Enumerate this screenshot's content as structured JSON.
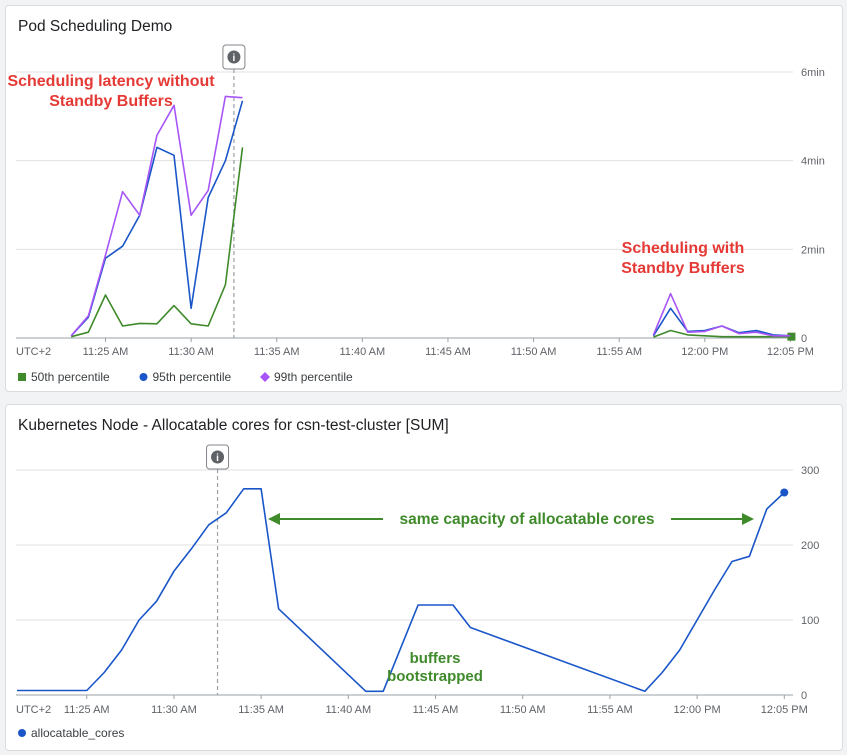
{
  "chart_data": [
    {
      "type": "line",
      "title": "Pod Scheduling Demo",
      "x_ticks": [
        "11:25 AM",
        "11:30 AM",
        "11:35 AM",
        "11:40 AM",
        "11:45 AM",
        "11:50 AM",
        "11:55 AM",
        "12:00 PM",
        "12:05 PM"
      ],
      "timezone_label": "UTC+2",
      "y_ticks": [
        "0",
        "2min",
        "4min",
        "6min"
      ],
      "ylim_min": [
        0,
        6
      ],
      "series": [
        {
          "name": "50th percentile",
          "color": "#3f8a2b",
          "marker": "square",
          "x": [
            "11:23:00",
            "11:24:00",
            "11:25:00",
            "11:26:00",
            "11:27:00",
            "11:28:00",
            "11:29:00",
            "11:30:00",
            "11:31:00",
            "11:32:00",
            "11:33:00",
            "11:57:00",
            "11:58:00",
            "11:59:00",
            "12:00:00",
            "12:01:00",
            "12:02:00",
            "12:03:00",
            "12:04:00",
            "12:05:00"
          ],
          "y": [
            0.03,
            0.13,
            0.97,
            0.27,
            0.33,
            0.32,
            0.73,
            0.32,
            0.27,
            1.2,
            4.3,
            0.02,
            0.17,
            0.07,
            0.05,
            0.03,
            0.03,
            0.03,
            0.03,
            0.03
          ]
        },
        {
          "name": "95th percentile",
          "color": "#1a56c8",
          "marker": "circle",
          "x": [
            "11:23:00",
            "11:24:00",
            "11:25:00",
            "11:26:00",
            "11:27:00",
            "11:28:00",
            "11:29:00",
            "11:30:00",
            "11:31:00",
            "11:32:00",
            "11:33:00",
            "11:57:00",
            "11:58:00",
            "11:59:00",
            "12:00:00",
            "12:01:00",
            "12:02:00",
            "12:03:00",
            "12:04:00",
            "12:05:00"
          ],
          "y": [
            0.05,
            0.47,
            1.8,
            2.07,
            2.77,
            4.3,
            4.12,
            0.67,
            3.17,
            4.0,
            5.35,
            0.05,
            0.67,
            0.15,
            0.17,
            0.27,
            0.12,
            0.17,
            0.07,
            0.05
          ]
        },
        {
          "name": "99th percentile",
          "color": "#a855f7",
          "marker": "diamond",
          "x": [
            "11:23:00",
            "11:24:00",
            "11:25:00",
            "11:26:00",
            "11:27:00",
            "11:28:00",
            "11:29:00",
            "11:30:00",
            "11:31:00",
            "11:32:00",
            "11:33:00",
            "11:57:00",
            "11:58:00",
            "11:59:00",
            "12:00:00",
            "12:01:00",
            "12:02:00",
            "12:03:00",
            "12:04:00",
            "12:05:00"
          ],
          "y": [
            0.05,
            0.5,
            1.87,
            3.3,
            2.77,
            4.57,
            5.25,
            2.77,
            3.33,
            5.45,
            5.42,
            0.07,
            1.0,
            0.13,
            0.15,
            0.27,
            0.1,
            0.13,
            0.05,
            0.05
          ]
        }
      ],
      "annotations": [
        {
          "text_lines": [
            "Scheduling latency without",
            "Standby Buffers"
          ],
          "color": "#e53935"
        },
        {
          "text_lines": [
            "Scheduling with",
            "Standby Buffers"
          ],
          "color": "#e53935"
        }
      ],
      "event_marker": {
        "x": "11:32:30",
        "icon": "info-icon"
      },
      "grid": true,
      "legend": "bottom-left"
    },
    {
      "type": "line",
      "title": "Kubernetes Node - Allocatable cores for csn-test-cluster [SUM]",
      "x_ticks": [
        "11:25 AM",
        "11:30 AM",
        "11:35 AM",
        "11:40 AM",
        "11:45 AM",
        "11:50 AM",
        "11:55 AM",
        "12:00 PM",
        "12:05 PM"
      ],
      "timezone_label": "UTC+2",
      "y_ticks": [
        "0",
        "100",
        "200",
        "300"
      ],
      "ylim": [
        0,
        300
      ],
      "series": [
        {
          "name": "allocatable_cores",
          "color": "#1a56c8",
          "marker": "circle",
          "x": [
            "11:21:00",
            "11:25:00",
            "11:26:00",
            "11:27:00",
            "11:28:00",
            "11:29:00",
            "11:30:00",
            "11:31:00",
            "11:32:00",
            "11:33:00",
            "11:34:00",
            "11:35:00",
            "11:36:00",
            "11:41:00",
            "11:42:00",
            "11:44:00",
            "11:45:00",
            "11:46:00",
            "11:47:00",
            "11:57:00",
            "11:58:00",
            "11:59:00",
            "12:00:00",
            "12:01:00",
            "12:02:00",
            "12:03:00",
            "12:04:00",
            "12:05:00"
          ],
          "y": [
            6,
            6,
            30,
            60,
            100,
            125,
            165,
            195,
            227,
            243,
            275,
            275,
            115,
            5,
            5,
            120,
            120,
            120,
            90,
            5,
            30,
            60,
            100,
            140,
            178,
            185,
            248,
            270
          ]
        }
      ],
      "annotations": [
        {
          "text": "same capacity of allocatable cores",
          "color": "#3f8a2b",
          "arrows": "both"
        },
        {
          "text_lines": [
            "buffers",
            "bootstrapped"
          ],
          "color": "#3f8a2b"
        }
      ],
      "event_marker": {
        "x": "11:32:30",
        "icon": "info-icon"
      },
      "grid": true,
      "legend": "bottom-left"
    }
  ]
}
